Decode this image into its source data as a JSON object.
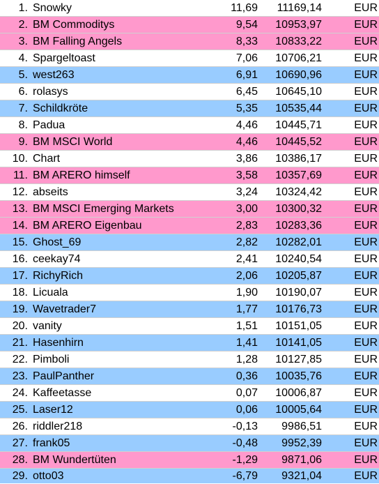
{
  "table": {
    "rows": [
      {
        "rank": "1.",
        "name": "Snowky",
        "pct": "11,69",
        "value": "11169,14",
        "currency": "EUR",
        "color": "#ffffff"
      },
      {
        "rank": "2.",
        "name": "BM Commoditys",
        "pct": "9,54",
        "value": "10953,97",
        "currency": "EUR",
        "color": "#ff99cc"
      },
      {
        "rank": "3.",
        "name": "BM Falling Angels",
        "pct": "8,33",
        "value": "10833,22",
        "currency": "EUR",
        "color": "#ff99cc"
      },
      {
        "rank": "4.",
        "name": "Spargeltoast",
        "pct": "7,06",
        "value": "10706,21",
        "currency": "EUR",
        "color": "#ffffff"
      },
      {
        "rank": "5.",
        "name": "west263",
        "pct": "6,91",
        "value": "10690,96",
        "currency": "EUR",
        "color": "#99ccff"
      },
      {
        "rank": "6.",
        "name": "rolasys",
        "pct": "6,45",
        "value": "10645,10",
        "currency": "EUR",
        "color": "#ffffff"
      },
      {
        "rank": "7.",
        "name": "Schildkröte",
        "pct": "5,35",
        "value": "10535,44",
        "currency": "EUR",
        "color": "#99ccff"
      },
      {
        "rank": "8.",
        "name": "Padua",
        "pct": "4,46",
        "value": "10445,71",
        "currency": "EUR",
        "color": "#ffffff"
      },
      {
        "rank": "9.",
        "name": "BM MSCI World",
        "pct": "4,46",
        "value": "10445,52",
        "currency": "EUR",
        "color": "#ff99cc"
      },
      {
        "rank": "10.",
        "name": "Chart",
        "pct": "3,86",
        "value": "10386,17",
        "currency": "EUR",
        "color": "#ffffff"
      },
      {
        "rank": "11.",
        "name": "BM ARERO himself",
        "pct": "3,58",
        "value": "10357,69",
        "currency": "EUR",
        "color": "#ff99cc"
      },
      {
        "rank": "12.",
        "name": "abseits",
        "pct": "3,24",
        "value": "10324,42",
        "currency": "EUR",
        "color": "#ffffff"
      },
      {
        "rank": "13.",
        "name": "BM MSCI Emerging Markets",
        "pct": "3,00",
        "value": "10300,32",
        "currency": "EUR",
        "color": "#ff99cc"
      },
      {
        "rank": "14.",
        "name": "BM ARERO Eigenbau",
        "pct": "2,83",
        "value": "10283,36",
        "currency": "EUR",
        "color": "#ff99cc"
      },
      {
        "rank": "15.",
        "name": "Ghost_69",
        "pct": "2,82",
        "value": "10282,01",
        "currency": "EUR",
        "color": "#99ccff"
      },
      {
        "rank": "16.",
        "name": "ceekay74",
        "pct": "2,41",
        "value": "10240,54",
        "currency": "EUR",
        "color": "#ffffff"
      },
      {
        "rank": "17.",
        "name": "RichyRich",
        "pct": "2,06",
        "value": "10205,87",
        "currency": "EUR",
        "color": "#99ccff"
      },
      {
        "rank": "18.",
        "name": "Licuala",
        "pct": "1,90",
        "value": "10190,07",
        "currency": "EUR",
        "color": "#ffffff"
      },
      {
        "rank": "19.",
        "name": "Wavetrader7",
        "pct": "1,77",
        "value": "10176,73",
        "currency": "EUR",
        "color": "#99ccff"
      },
      {
        "rank": "20.",
        "name": "vanity",
        "pct": "1,51",
        "value": "10151,05",
        "currency": "EUR",
        "color": "#ffffff"
      },
      {
        "rank": "21.",
        "name": "Hasenhirn",
        "pct": "1,41",
        "value": "10141,05",
        "currency": "EUR",
        "color": "#99ccff"
      },
      {
        "rank": "22.",
        "name": "Pimboli",
        "pct": "1,28",
        "value": "10127,85",
        "currency": "EUR",
        "color": "#ffffff"
      },
      {
        "rank": "23.",
        "name": "PaulPanther",
        "pct": "0,36",
        "value": "10035,76",
        "currency": "EUR",
        "color": "#99ccff"
      },
      {
        "rank": "24.",
        "name": "Kaffeetasse",
        "pct": "0,07",
        "value": "10006,87",
        "currency": "EUR",
        "color": "#ffffff"
      },
      {
        "rank": "25.",
        "name": "Laser12",
        "pct": "0,06",
        "value": "10005,64",
        "currency": "EUR",
        "color": "#99ccff"
      },
      {
        "rank": "26.",
        "name": "riddler218",
        "pct": "-0,13",
        "value": "9986,51",
        "currency": "EUR",
        "color": "#ffffff"
      },
      {
        "rank": "27.",
        "name": "frank05",
        "pct": "-0,48",
        "value": "9952,39",
        "currency": "EUR",
        "color": "#99ccff"
      },
      {
        "rank": "28.",
        "name": "BM Wundertüten",
        "pct": "-1,29",
        "value": "9871,06",
        "currency": "EUR",
        "color": "#ff99cc"
      },
      {
        "rank": "29.",
        "name": "otto03",
        "pct": "-6,79",
        "value": "9321,04",
        "currency": "EUR",
        "color": "#99ccff"
      }
    ]
  }
}
